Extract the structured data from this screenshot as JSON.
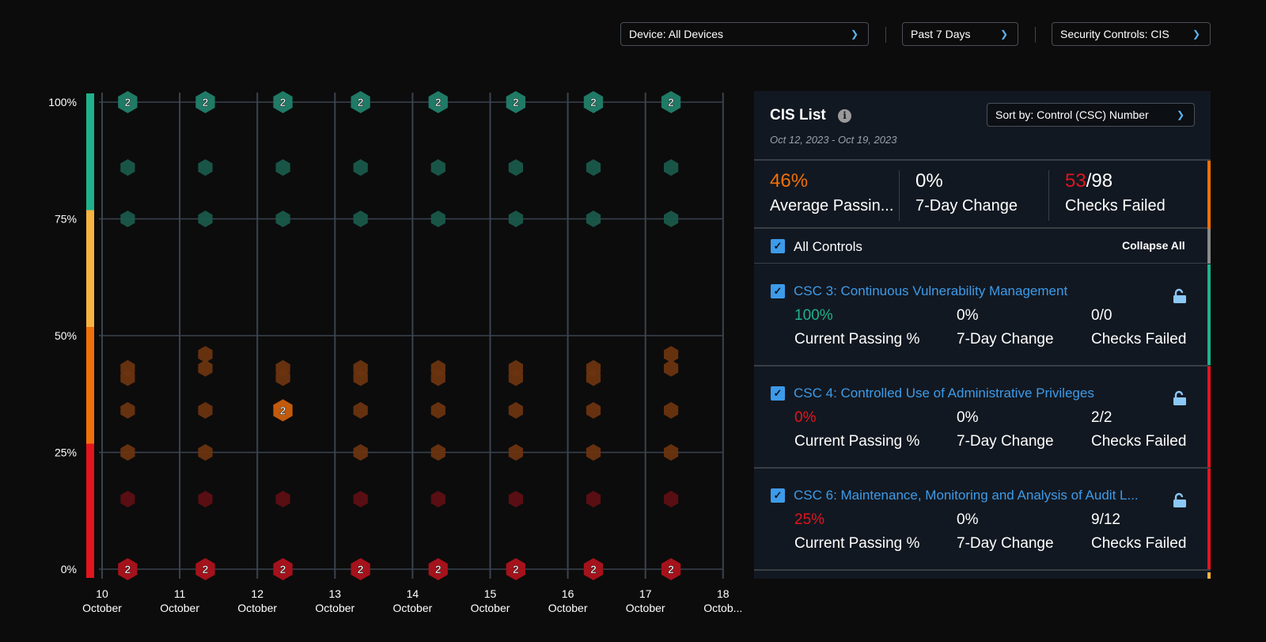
{
  "filters": {
    "device": "Device: All Devices",
    "period": "Past 7 Days",
    "controls": "Security Controls: CIS"
  },
  "chart_data": {
    "type": "scatter",
    "marker": "hexagon",
    "y_tick_labels": [
      "0%",
      "25%",
      "50%",
      "75%",
      "100%"
    ],
    "ylim": [
      0,
      100
    ],
    "x_tick_labels": [
      [
        "10",
        "October"
      ],
      [
        "11",
        "October"
      ],
      [
        "12",
        "October"
      ],
      [
        "13",
        "October"
      ],
      [
        "14",
        "October"
      ],
      [
        "15",
        "October"
      ],
      [
        "16",
        "October"
      ],
      [
        "17",
        "October"
      ],
      [
        "18",
        "Octob..."
      ]
    ],
    "xlim": [
      10,
      18
    ],
    "bands": [
      {
        "from": 0,
        "to": 25,
        "color": "#e3141e"
      },
      {
        "from": 25,
        "to": 50,
        "color": "#f0700a"
      },
      {
        "from": 50,
        "to": 75,
        "color": "#f8b440"
      },
      {
        "from": 75,
        "to": 100,
        "color": "#20b28c"
      }
    ],
    "columns": [
      {
        "day": 10,
        "points": [
          [
            100,
            2
          ],
          [
            86,
            1
          ],
          [
            75,
            1
          ],
          [
            43,
            1
          ],
          [
            41,
            1
          ],
          [
            34,
            1
          ],
          [
            25,
            1
          ],
          [
            15,
            1
          ],
          [
            0,
            2
          ]
        ]
      },
      {
        "day": 11,
        "points": [
          [
            100,
            2
          ],
          [
            86,
            1
          ],
          [
            75,
            1
          ],
          [
            46,
            1
          ],
          [
            43,
            1
          ],
          [
            34,
            1
          ],
          [
            25,
            1
          ],
          [
            15,
            1
          ],
          [
            0,
            2
          ]
        ]
      },
      {
        "day": 12,
        "points": [
          [
            100,
            2
          ],
          [
            86,
            1
          ],
          [
            75,
            1
          ],
          [
            43,
            1
          ],
          [
            41,
            1
          ],
          [
            34,
            2
          ],
          [
            15,
            1
          ],
          [
            0,
            2
          ]
        ]
      },
      {
        "day": 13,
        "points": [
          [
            100,
            2
          ],
          [
            86,
            1
          ],
          [
            75,
            1
          ],
          [
            43,
            1
          ],
          [
            41,
            1
          ],
          [
            34,
            1
          ],
          [
            25,
            1
          ],
          [
            15,
            1
          ],
          [
            0,
            2
          ]
        ]
      },
      {
        "day": 14,
        "points": [
          [
            100,
            2
          ],
          [
            86,
            1
          ],
          [
            75,
            1
          ],
          [
            43,
            1
          ],
          [
            41,
            1
          ],
          [
            34,
            1
          ],
          [
            25,
            1
          ],
          [
            15,
            1
          ],
          [
            0,
            2
          ]
        ]
      },
      {
        "day": 15,
        "points": [
          [
            100,
            2
          ],
          [
            86,
            1
          ],
          [
            75,
            1
          ],
          [
            43,
            1
          ],
          [
            41,
            1
          ],
          [
            34,
            1
          ],
          [
            25,
            1
          ],
          [
            15,
            1
          ],
          [
            0,
            2
          ]
        ]
      },
      {
        "day": 16,
        "points": [
          [
            100,
            2
          ],
          [
            86,
            1
          ],
          [
            75,
            1
          ],
          [
            43,
            1
          ],
          [
            41,
            1
          ],
          [
            34,
            1
          ],
          [
            25,
            1
          ],
          [
            15,
            1
          ],
          [
            0,
            2
          ]
        ]
      },
      {
        "day": 17,
        "points": [
          [
            100,
            2
          ],
          [
            86,
            1
          ],
          [
            75,
            1
          ],
          [
            46,
            1
          ],
          [
            43,
            1
          ],
          [
            34,
            1
          ],
          [
            25,
            1
          ],
          [
            15,
            1
          ],
          [
            0,
            2
          ]
        ]
      }
    ]
  },
  "panel": {
    "title": "CIS List",
    "date_range": "Oct 12, 2023 - Oct 19, 2023",
    "sort": "Sort by: Control (CSC) Number",
    "stats": {
      "avg_value": "46%",
      "avg_label": "Average Passin...",
      "change_value": "0%",
      "change_label": "7-Day Change",
      "failed_value": "53",
      "failed_total": "/98",
      "failed_label": "Checks Failed"
    },
    "all_controls": "All Controls",
    "collapse_all": "Collapse All",
    "items": [
      {
        "name": "CSC 3: Continuous Vulnerability Management",
        "passing": "100%",
        "passing_color": "#20b28c",
        "change": "0%",
        "failed": "0/0",
        "bar": "#20b28c"
      },
      {
        "name": "CSC 4: Controlled Use of Administrative Privileges",
        "passing": "0%",
        "passing_color": "#e3141e",
        "change": "0%",
        "failed": "2/2",
        "bar": "#e3141e"
      },
      {
        "name": "CSC 6: Maintenance, Monitoring and Analysis of Audit L...",
        "passing": "25%",
        "passing_color": "#e3141e",
        "change": "0%",
        "failed": "9/12",
        "bar": "#e3141e"
      }
    ],
    "labels": {
      "passing": "Current Passing %",
      "change": "7-Day Change",
      "failed": "Checks Failed"
    }
  }
}
